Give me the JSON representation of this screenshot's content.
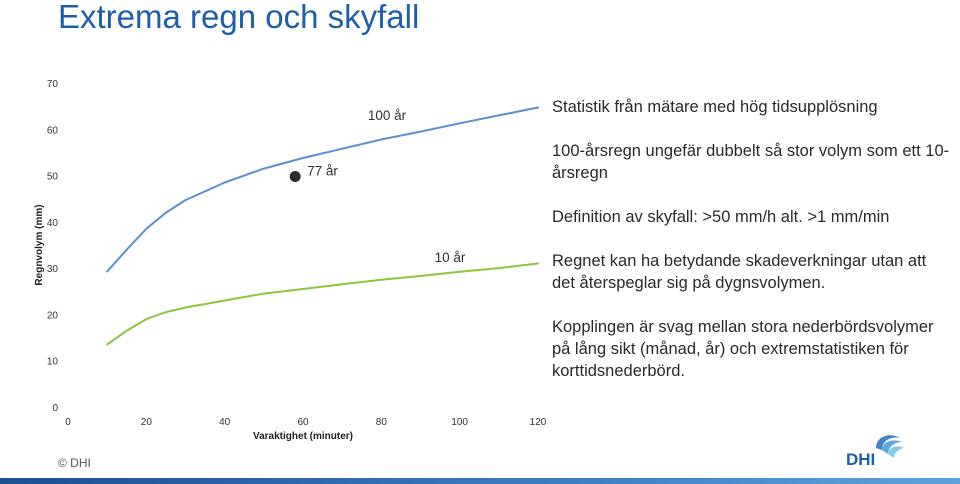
{
  "page": {
    "title": "Extrema regn och skyfall",
    "bullets": [
      "Statistik från mätare med hög tidsupplösning",
      "100-årsregn ungefär dubbelt så stor volym som ett 10-årsregn",
      "Definition av skyfall: >50 mm/h alt. >1 mm/min",
      "Regnet kan ha betydande skadeverkningar utan att det återspeglar sig på dygnsvolymen.",
      "Kopplingen är svag mellan stora nederbördsvolymer på lång sikt (månad, år) och extremstatistiken för korttidsnederbörd."
    ],
    "copyright": "© DHI",
    "logo_text": "DHI"
  },
  "colors": {
    "title": "#1f5fa8",
    "series_100": "#5b8fd0",
    "series_10": "#8cc63f",
    "point": "#2b2b2b"
  },
  "chart_data": {
    "type": "line",
    "xlabel": "Varaktighet (minuter)",
    "ylabel": "Regnvolym (mm)",
    "xlim": [
      0,
      120
    ],
    "ylim": [
      0,
      70
    ],
    "xticks": [
      0,
      20,
      40,
      60,
      80,
      100,
      120
    ],
    "yticks": [
      0,
      10,
      20,
      30,
      40,
      50,
      60,
      70
    ],
    "grid": false,
    "series": [
      {
        "name": "100 år",
        "x": [
          10,
          15,
          20,
          25,
          30,
          40,
          50,
          60,
          70,
          80,
          90,
          100,
          110,
          120
        ],
        "y": [
          29.3,
          34,
          38.5,
          42,
          44.7,
          48.5,
          51.5,
          53.8,
          55.8,
          57.8,
          59.5,
          61.3,
          63,
          64.7
        ]
      },
      {
        "name": "10 år",
        "x": [
          10,
          15,
          20,
          25,
          30,
          40,
          50,
          60,
          70,
          80,
          90,
          100,
          110,
          120
        ],
        "y": [
          13.5,
          16.5,
          19,
          20.5,
          21.5,
          23,
          24.5,
          25.5,
          26.5,
          27.5,
          28.3,
          29.2,
          30,
          31
        ]
      }
    ],
    "points": [
      {
        "name": "77 år",
        "x": 58,
        "y": 49.8
      }
    ]
  }
}
